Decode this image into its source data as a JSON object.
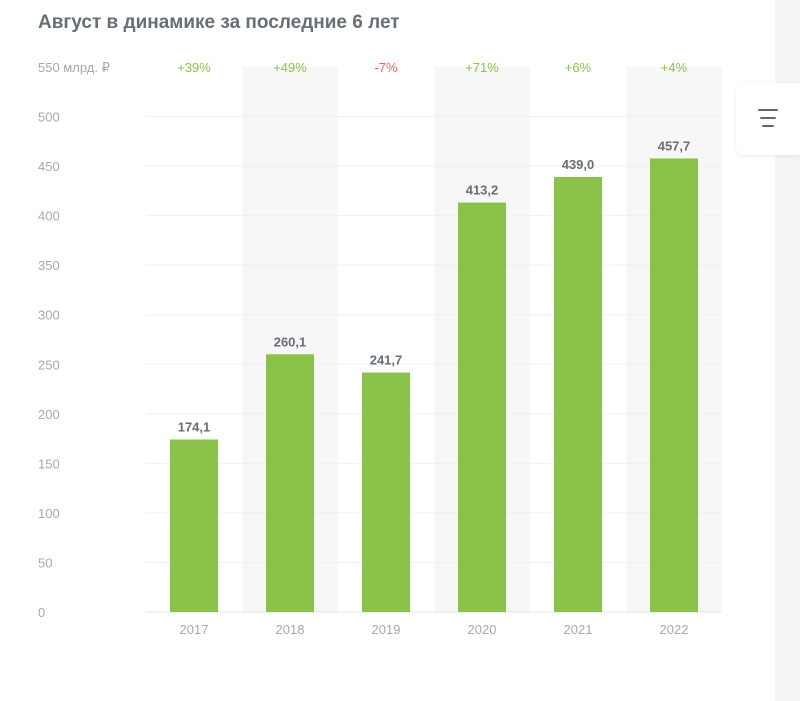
{
  "chart_data": {
    "type": "bar",
    "title": "Август в динамике за последние 6 лет",
    "unit_label": "550 млрд. ₽",
    "categories": [
      "2017",
      "2018",
      "2019",
      "2020",
      "2021",
      "2022"
    ],
    "values": [
      174.1,
      260.1,
      241.7,
      413.2,
      439.0,
      457.7
    ],
    "value_labels": [
      "174,1",
      "260,1",
      "241,7",
      "413,2",
      "439,0",
      "457,7"
    ],
    "changes": [
      "+39%",
      "+49%",
      "-7%",
      "+71%",
      "+6%",
      "+4%"
    ],
    "change_colors": [
      "#8bc34a",
      "#8bc34a",
      "#f0605d",
      "#8bc34a",
      "#8bc34a",
      "#8bc34a"
    ],
    "yticks": [
      "0",
      "50",
      "100",
      "150",
      "200",
      "250",
      "300",
      "350",
      "400",
      "450",
      "500"
    ],
    "ylim": [
      0,
      550
    ],
    "grid": true,
    "bar_color": "#8bc34a",
    "band_color": "#f7f7f7",
    "text_color": "#666e76",
    "axis_text_color": "#a4a9ae"
  },
  "menu": {
    "icon": "hamburger-menu-icon"
  }
}
